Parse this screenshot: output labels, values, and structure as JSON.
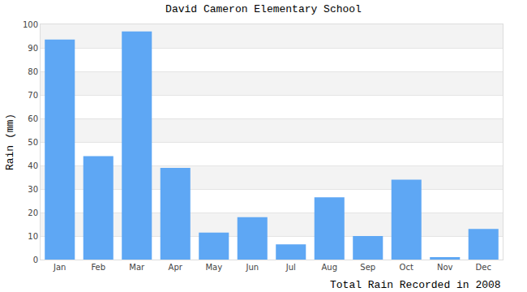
{
  "chart_data": {
    "type": "bar",
    "title": "David Cameron Elementary School",
    "x_label": "Total Rain Recorded in 2008",
    "y_label": "Rain (mm)",
    "categories": [
      "Jan",
      "Feb",
      "Mar",
      "Apr",
      "May",
      "Jun",
      "Jul",
      "Aug",
      "Sep",
      "Oct",
      "Nov",
      "Dec"
    ],
    "values": [
      93.5,
      44,
      97,
      39,
      11.5,
      18,
      6.5,
      26.5,
      10,
      34,
      1,
      13
    ],
    "color": "#5ea7f4",
    "ylim": [
      0,
      100
    ],
    "yticks": [
      0,
      10,
      20,
      30,
      40,
      50,
      60,
      70,
      80,
      90,
      100
    ],
    "grid": true
  }
}
